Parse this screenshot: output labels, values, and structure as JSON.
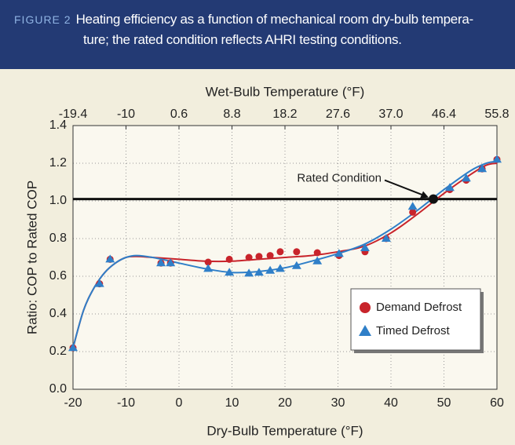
{
  "header": {
    "label": "FIGURE 2",
    "caption": [
      "Heating efficiency as a function of mechanical room dry-bulb tempera-",
      "ture; the rated condition reflects AHRI testing conditions."
    ]
  },
  "chart_data": {
    "type": "scatter",
    "x_label": "Dry-Bulb Temperature (°F)",
    "y_label": "Ratio: COP to Rated COP",
    "top_axis_label": "Wet-Bulb Temperature (°F)",
    "top_axis_ticks": [
      -19.4,
      -10,
      0.6,
      8.8,
      18.2,
      27.6,
      {
        "value": 37,
        "label": "37.0"
      },
      46.4,
      55.8
    ],
    "xlim": [
      -20,
      60
    ],
    "xticks": [
      -20,
      -10,
      0,
      10,
      20,
      30,
      40,
      50,
      60
    ],
    "ylim": [
      0,
      1.4
    ],
    "yticks": [
      {
        "value": 0,
        "label": "0.0"
      },
      0.2,
      0.4,
      0.6,
      0.8,
      {
        "value": 1,
        "label": "1.0"
      },
      1.2,
      1.4
    ],
    "grid": true,
    "legend": "lower right",
    "reference_line": 1.01,
    "annotation": {
      "text": "Rated Condition",
      "x": 48,
      "y": 1.01
    },
    "fit_x": [
      -20,
      -18,
      -16,
      -14,
      -12,
      -10,
      -8,
      -5,
      0,
      5,
      10,
      15,
      20,
      25,
      30,
      35,
      40,
      45,
      50,
      55,
      58,
      60
    ],
    "series": [
      {
        "name": "Demand Defrost",
        "color": "#c8242b",
        "marker": "circle",
        "x": [
          -20,
          -15,
          -13,
          -3.4,
          -1.6,
          5.5,
          9.5,
          13.2,
          15.1,
          17.2,
          19.1,
          22.2,
          26.1,
          30.2,
          35.1,
          39.1,
          44.1,
          51.1,
          54.2,
          57.2,
          60
        ],
        "values": [
          0.22,
          0.56,
          0.69,
          0.67,
          0.67,
          0.675,
          0.69,
          0.7,
          0.705,
          0.71,
          0.73,
          0.73,
          0.725,
          0.71,
          0.73,
          0.8,
          0.94,
          1.06,
          1.11,
          1.17,
          1.22
        ],
        "fit": [
          0.22,
          0.42,
          0.54,
          0.62,
          0.67,
          0.7,
          0.705,
          0.7,
          0.69,
          0.68,
          0.68,
          0.69,
          0.7,
          0.71,
          0.73,
          0.76,
          0.83,
          0.93,
          1.04,
          1.14,
          1.19,
          1.2
        ]
      },
      {
        "name": "Timed Defrost",
        "color": "#2f7fc8",
        "marker": "triangle",
        "x": [
          -20,
          -15,
          -13,
          -3.4,
          -1.6,
          5.5,
          9.5,
          13.2,
          15.1,
          17.2,
          19.1,
          22.2,
          26.1,
          30.2,
          35.1,
          39.1,
          44.1,
          51.1,
          54.2,
          57.2,
          60
        ],
        "values": [
          0.22,
          0.56,
          0.69,
          0.67,
          0.67,
          0.64,
          0.62,
          0.615,
          0.62,
          0.63,
          0.64,
          0.655,
          0.68,
          0.72,
          0.75,
          0.8,
          0.97,
          1.07,
          1.12,
          1.17,
          1.22
        ],
        "fit": [
          0.22,
          0.42,
          0.54,
          0.62,
          0.67,
          0.7,
          0.71,
          0.7,
          0.67,
          0.64,
          0.62,
          0.625,
          0.645,
          0.68,
          0.72,
          0.77,
          0.85,
          0.95,
          1.06,
          1.16,
          1.2,
          1.21
        ]
      }
    ]
  }
}
